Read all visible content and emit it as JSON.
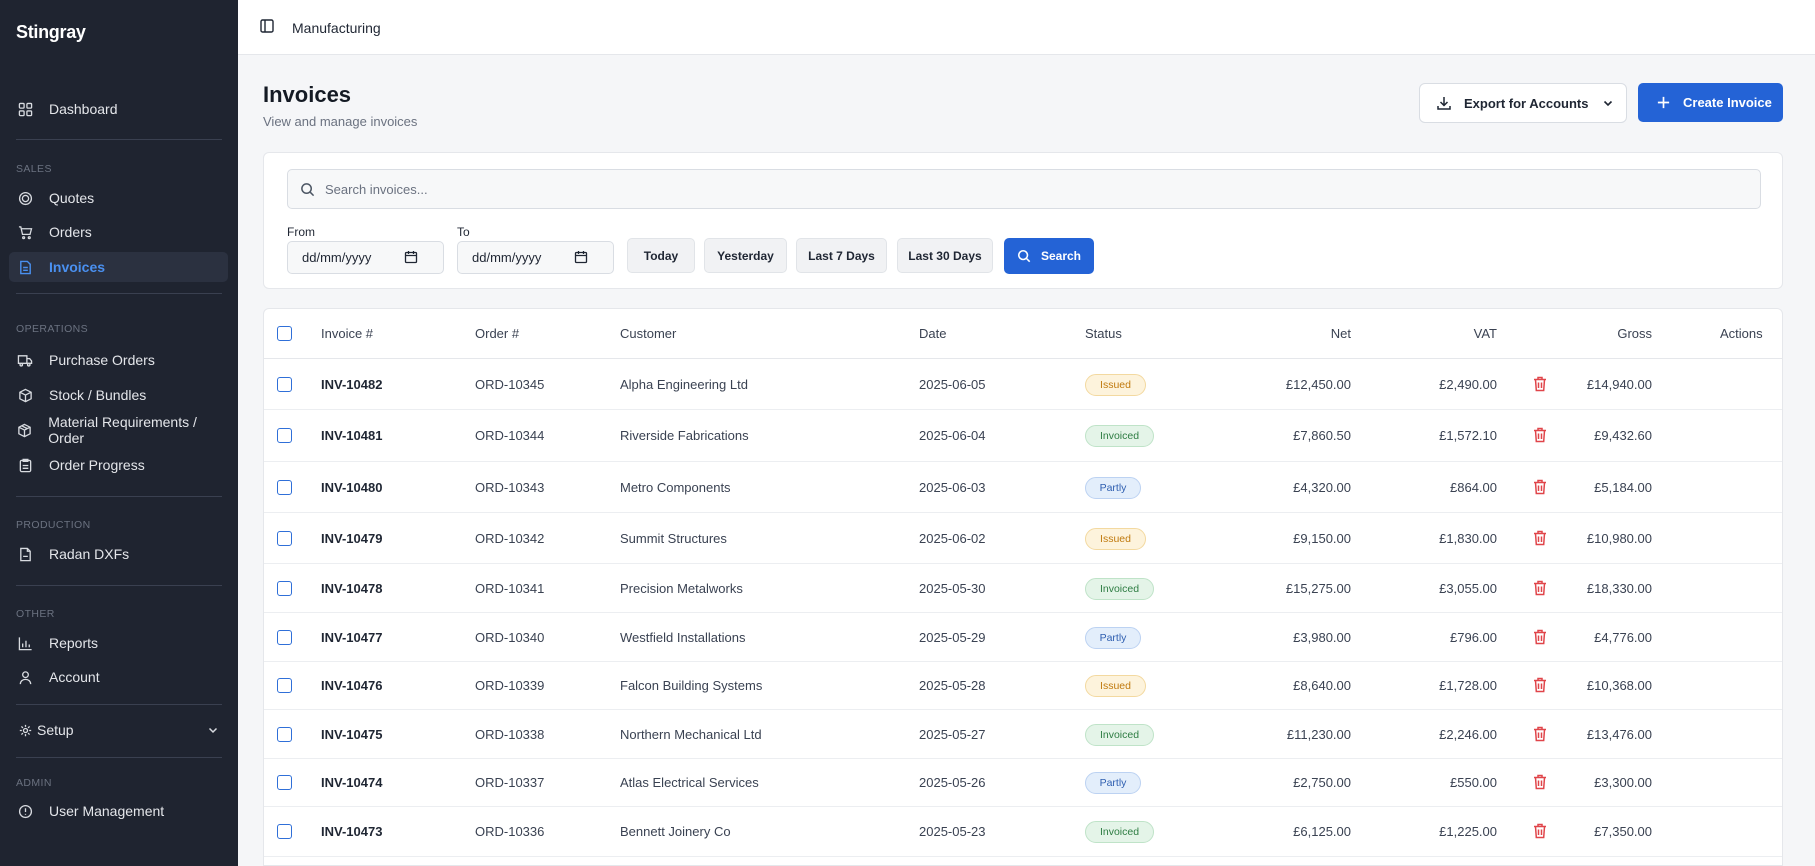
{
  "sidebar": {
    "brand": "Stingray",
    "dashboard": "Dashboard",
    "sections": {
      "sales": "SALES",
      "operations": "OPERATIONS",
      "production": "PRODUCTION",
      "other": "OTHER",
      "admin": "ADMIN"
    },
    "items": {
      "quotes": "Quotes",
      "orders": "Orders",
      "invoices": "Invoices",
      "purchase_orders": "Purchase Orders",
      "stock": "Stock / Bundles",
      "material": "Material Requirements / Order",
      "progress": "Order Progress",
      "radan": "Radan DXFs",
      "reports": "Reports",
      "account": "Account",
      "setup": "Setup",
      "users": "User Management"
    },
    "active": "invoices",
    "accent": "#4a90f0"
  },
  "topbar": {
    "breadcrumb": "Manufacturing"
  },
  "page": {
    "title": "Invoices",
    "subtitle": "View and manage invoices"
  },
  "actions": {
    "export": "Export for Accounts",
    "create": "Create Invoice"
  },
  "filters": {
    "search_placeholder": "Search invoices...",
    "from_label": "From",
    "to_label": "To",
    "from_value": "dd/mm/yyyy",
    "to_value": "dd/mm/yyyy",
    "today": "Today",
    "yesterday": "Yesterday",
    "last7": "Last 7 Days",
    "last30": "Last 30 Days",
    "search": "Search"
  },
  "table": {
    "headers": {
      "invoice": "Invoice #",
      "order": "Order #",
      "customer": "Customer",
      "date": "Date",
      "status": "Status",
      "net": "Net",
      "vat": "VAT",
      "gross": "Gross",
      "actions": "Actions"
    },
    "rows": [
      {
        "invoice": "INV-10482",
        "order": "ORD-10345",
        "customer": "Alpha Engineering Ltd",
        "date": "2025-06-05",
        "status": "Issued",
        "net": "£12,450.00",
        "vat": "£2,490.00",
        "gross": "£14,940.00"
      },
      {
        "invoice": "INV-10481",
        "order": "ORD-10344",
        "customer": "Riverside Fabrications",
        "date": "2025-06-04",
        "status": "Invoiced",
        "net": "£7,860.50",
        "vat": "£1,572.10",
        "gross": "£9,432.60"
      },
      {
        "invoice": "INV-10480",
        "order": "ORD-10343",
        "customer": "Metro Components",
        "date": "2025-06-03",
        "status": "Partly",
        "net": "£4,320.00",
        "vat": "£864.00",
        "gross": "£5,184.00"
      },
      {
        "invoice": "INV-10479",
        "order": "ORD-10342",
        "customer": "Summit Structures",
        "date": "2025-06-02",
        "status": "Issued",
        "net": "£9,150.00",
        "vat": "£1,830.00",
        "gross": "£10,980.00"
      },
      {
        "invoice": "INV-10478",
        "order": "ORD-10341",
        "customer": "Precision Metalworks",
        "date": "2025-05-30",
        "status": "Invoiced",
        "net": "£15,275.00",
        "vat": "£3,055.00",
        "gross": "£18,330.00"
      },
      {
        "invoice": "INV-10477",
        "order": "ORD-10340",
        "customer": "Westfield Installations",
        "date": "2025-05-29",
        "status": "Partly",
        "net": "£3,980.00",
        "vat": "£796.00",
        "gross": "£4,776.00"
      },
      {
        "invoice": "INV-10476",
        "order": "ORD-10339",
        "customer": "Falcon Building Systems",
        "date": "2025-05-28",
        "status": "Issued",
        "net": "£8,640.00",
        "vat": "£1,728.00",
        "gross": "£10,368.00"
      },
      {
        "invoice": "INV-10475",
        "order": "ORD-10338",
        "customer": "Northern Mechanical Ltd",
        "date": "2025-05-27",
        "status": "Invoiced",
        "net": "£11,230.00",
        "vat": "£2,246.00",
        "gross": "£13,476.00"
      },
      {
        "invoice": "INV-10474",
        "order": "ORD-10337",
        "customer": "Atlas Electrical Services",
        "date": "2025-05-26",
        "status": "Partly",
        "net": "£2,750.00",
        "vat": "£550.00",
        "gross": "£3,300.00"
      },
      {
        "invoice": "INV-10473",
        "order": "ORD-10336",
        "customer": "Bennett Joinery Co",
        "date": "2025-05-23",
        "status": "Invoiced",
        "net": "£6,125.00",
        "vat": "£1,225.00",
        "gross": "£7,350.00"
      }
    ]
  },
  "colors": {
    "primary": "#2463d6",
    "sidebar_bg": "#1f2430",
    "delete": "#e0454a"
  }
}
